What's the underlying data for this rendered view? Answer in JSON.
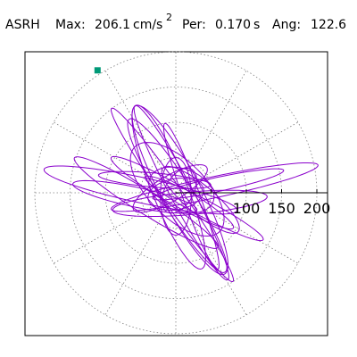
{
  "header": {
    "station": "ASRH",
    "max_label": "Max:",
    "max_value": "206.1",
    "max_unit": "cm/s",
    "max_unit_exp": "2",
    "per_label": "Per:",
    "per_value": "0.170",
    "per_unit": "s",
    "ang_label": "Ang:",
    "ang_value": "122.6"
  },
  "colors": {
    "trace": "#8a00cc",
    "marker": "#009977",
    "grid": "#808080",
    "axis": "#000000"
  },
  "chart_data": {
    "type": "scatter",
    "description_kind": "polar particle-motion plot",
    "rings": [
      50,
      100,
      150,
      200
    ],
    "radial_labels": [
      "100",
      "150",
      "200"
    ],
    "spokes_deg": [
      0,
      30,
      60,
      90,
      120,
      150,
      180,
      210,
      240,
      270,
      300,
      330
    ],
    "peak": {
      "magnitude": 206.1,
      "angle_deg": 122.6
    },
    "loops": [
      {
        "semi_major": 150,
        "semi_minor": 14,
        "angle_deg": 125,
        "cx": -5,
        "cy": -3
      },
      {
        "semi_major": 135,
        "semi_minor": 28,
        "angle_deg": 118,
        "cx": 6,
        "cy": 4
      },
      {
        "semi_major": 140,
        "semi_minor": 16,
        "angle_deg": -62,
        "cx": 8,
        "cy": 0
      },
      {
        "semi_major": 128,
        "semi_minor": 22,
        "angle_deg": -58,
        "cx": 2,
        "cy": -4
      },
      {
        "semi_major": 150,
        "semi_minor": 15,
        "angle_deg": 12,
        "cx": 55,
        "cy": 8
      },
      {
        "semi_major": 95,
        "semi_minor": 10,
        "angle_deg": 12,
        "cx": 60,
        "cy": 12
      },
      {
        "semi_major": 140,
        "semi_minor": 18,
        "angle_deg": 168,
        "cx": -50,
        "cy": 4
      },
      {
        "semi_major": 90,
        "semi_minor": 14,
        "angle_deg": 168,
        "cx": -58,
        "cy": -6
      },
      {
        "semi_major": 120,
        "semi_minor": 16,
        "angle_deg": 148,
        "cx": -42,
        "cy": -14
      },
      {
        "semi_major": 100,
        "semi_minor": 14,
        "angle_deg": 150,
        "cx": -5,
        "cy": 0
      },
      {
        "semi_major": 95,
        "semi_minor": 12,
        "angle_deg": 152,
        "cx": 40,
        "cy": -22
      },
      {
        "semi_major": 85,
        "semi_minor": 40,
        "angle_deg": 135,
        "cx": 2,
        "cy": 5
      },
      {
        "semi_major": 125,
        "semi_minor": 25,
        "angle_deg": 112,
        "cx": -10,
        "cy": 8
      },
      {
        "semi_major": 110,
        "semi_minor": 12,
        "angle_deg": -70,
        "cx": 22,
        "cy": -5
      },
      {
        "semi_major": 110,
        "semi_minor": 16,
        "angle_deg": 5,
        "cx": 20,
        "cy": -15
      },
      {
        "semi_major": 70,
        "semi_minor": 20,
        "angle_deg": -40,
        "cx": 35,
        "cy": -10
      },
      {
        "semi_major": 55,
        "semi_minor": 22,
        "angle_deg": 90,
        "cx": 0,
        "cy": -5
      },
      {
        "semi_major": 60,
        "semi_minor": 18,
        "angle_deg": 30,
        "cx": -8,
        "cy": 6
      },
      {
        "semi_major": 80,
        "semi_minor": 10,
        "angle_deg": 175,
        "cx": -30,
        "cy": 18
      },
      {
        "semi_major": 48,
        "semi_minor": 30,
        "angle_deg": 160,
        "cx": 8,
        "cy": 4
      },
      {
        "semi_major": 40,
        "semi_minor": 22,
        "angle_deg": 10,
        "cx": 0,
        "cy": -2
      },
      {
        "semi_major": 35,
        "semi_minor": 20,
        "angle_deg": 60,
        "cx": 5,
        "cy": 3
      }
    ]
  }
}
